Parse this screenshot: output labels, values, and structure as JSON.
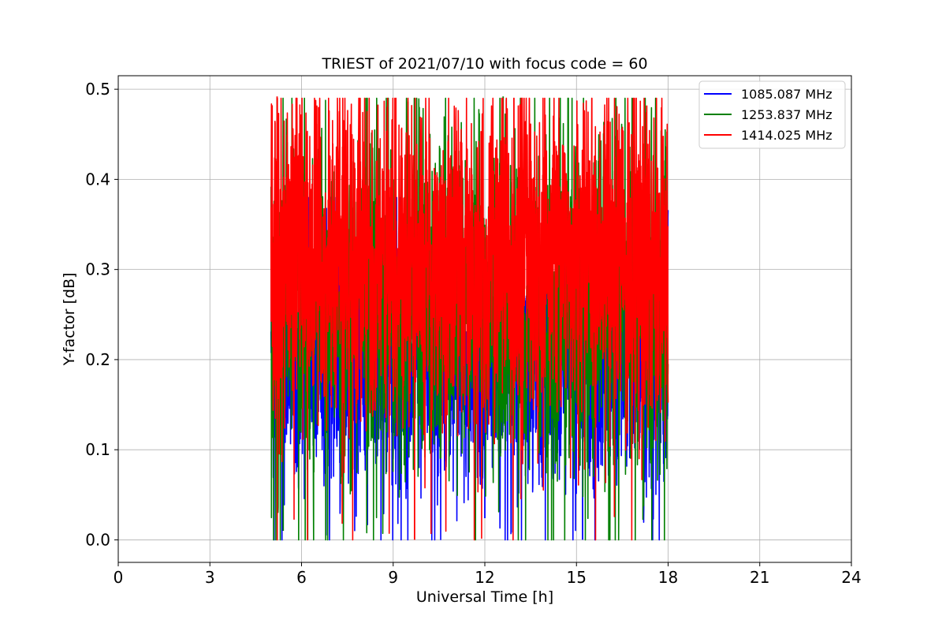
{
  "chart_data": {
    "type": "line",
    "title": "TRIEST of 2021/07/10 with focus code = 60",
    "xlabel": "Universal Time [h]",
    "ylabel": "Y-factor [dB]",
    "xlim": [
      0,
      24
    ],
    "ylim": [
      -0.025,
      0.515
    ],
    "xticks": [
      0,
      3,
      6,
      9,
      12,
      15,
      18,
      21,
      24
    ],
    "yticks": [
      0.0,
      0.1,
      0.2,
      0.3,
      0.4,
      0.5
    ],
    "ytick_labels": [
      "0.0",
      "0.1",
      "0.2",
      "0.3",
      "0.4",
      "0.5"
    ],
    "grid": true,
    "legend_position": "top-right",
    "time_range": [
      5.0,
      18.0
    ],
    "series": [
      {
        "name": "1085.087 MHz",
        "color": "#0000ff",
        "approx_mean": 0.2,
        "approx_range": [
          0.0,
          0.38
        ],
        "min_points": [
          [
            6.8,
            0.005
          ],
          [
            12.0,
            0.024
          ],
          [
            15.2,
            0.0
          ]
        ]
      },
      {
        "name": "1253.837 MHz",
        "color": "#008000",
        "approx_mean": 0.26,
        "approx_range": [
          0.0,
          0.49
        ],
        "max_points": [
          [
            12.6,
            0.492
          ],
          [
            10.8,
            0.449
          ],
          [
            14.0,
            0.45
          ]
        ],
        "min_points": [
          [
            6.2,
            0.0
          ],
          [
            5.4,
            0.01
          ]
        ]
      },
      {
        "name": "1414.025 MHz",
        "color": "#ff0000",
        "approx_mean": 0.31,
        "approx_range": [
          0.0,
          0.49
        ],
        "max_points": [
          [
            5.2,
            0.492
          ],
          [
            6.5,
            0.482
          ],
          [
            8.5,
            0.483
          ],
          [
            17.3,
            0.482
          ]
        ],
        "min_points": [
          [
            9.7,
            0.0
          ]
        ]
      }
    ]
  }
}
